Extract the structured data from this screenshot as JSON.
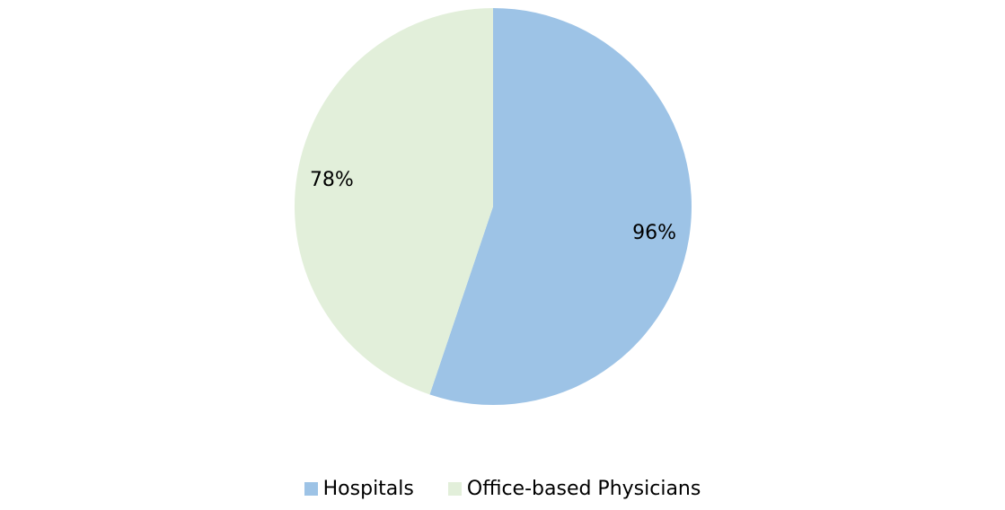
{
  "chart_data": {
    "type": "pie",
    "categories": [
      "Hospitals",
      "Office-based Physicians"
    ],
    "values": [
      96,
      78
    ],
    "data_labels": [
      "96%",
      "78%"
    ],
    "colors": [
      "#9dc3e6",
      "#e2efda"
    ],
    "start_angle_deg": 0,
    "direction": "clockwise",
    "legend": {
      "position": "bottom",
      "entries": [
        "Hospitals",
        "Office-based Physicians"
      ]
    }
  }
}
